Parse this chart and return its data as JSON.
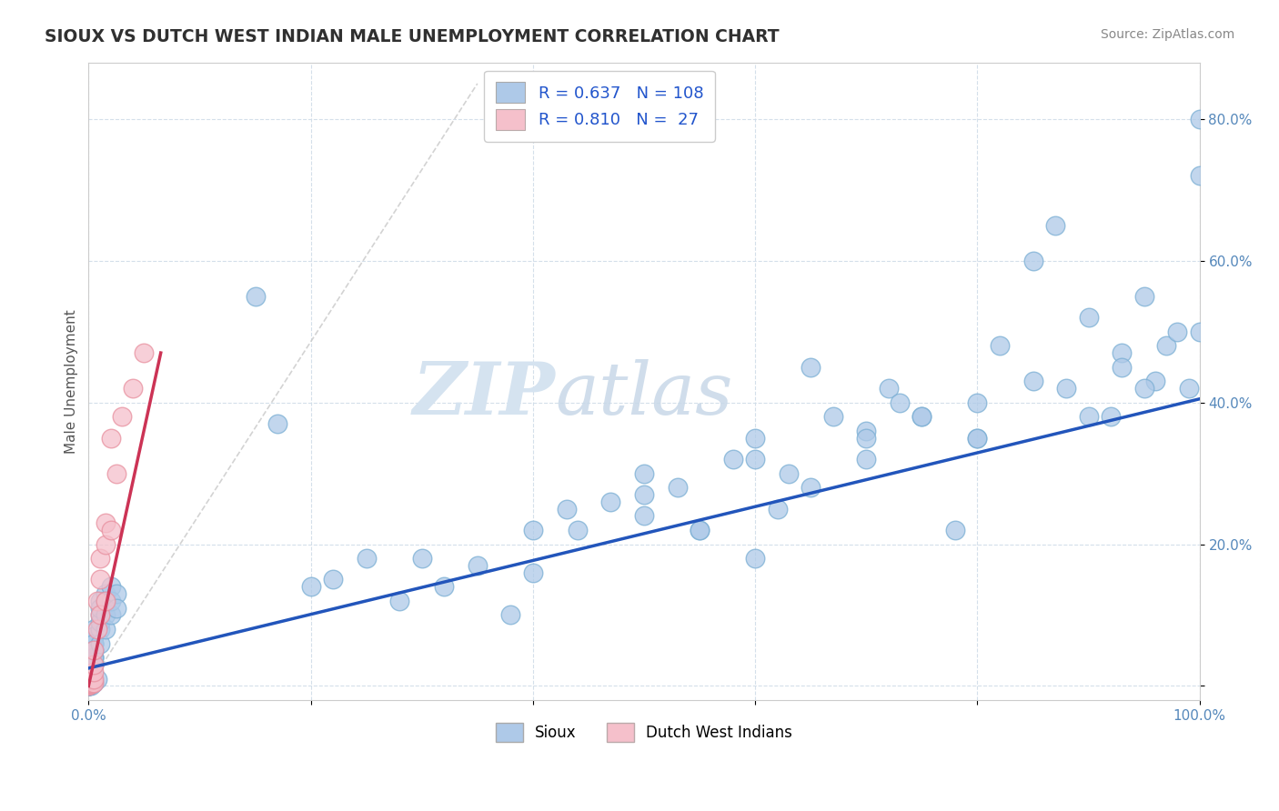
{
  "title": "SIOUX VS DUTCH WEST INDIAN MALE UNEMPLOYMENT CORRELATION CHART",
  "source_text": "Source: ZipAtlas.com",
  "ylabel": "Male Unemployment",
  "xlim": [
    0,
    1.0
  ],
  "ylim": [
    -0.02,
    0.88
  ],
  "xticks": [
    0.0,
    0.2,
    0.4,
    0.6,
    0.8,
    1.0
  ],
  "yticks": [
    0.0,
    0.2,
    0.4,
    0.6,
    0.8
  ],
  "xticklabels": [
    "0.0%",
    "",
    "",
    "",
    "",
    "100.0%"
  ],
  "yticklabels": [
    "",
    "20.0%",
    "40.0%",
    "60.0%",
    "80.0%"
  ],
  "sioux_color": "#aec9e8",
  "sioux_edge": "#7bafd4",
  "dutch_color": "#f5c0cb",
  "dutch_edge": "#e8909f",
  "blue_line_color": "#2255bb",
  "pink_line_color": "#cc3355",
  "diag_line_color": "#c8c8c8",
  "watermark_color": "#d5e3f0",
  "background_color": "#ffffff",
  "grid_color": "#d0dce8",
  "title_color": "#303030",
  "source_color": "#888888",
  "tick_color": "#5588bb",
  "sioux_x": [
    0.005,
    0.008,
    0.0,
    0.0,
    0.0,
    0.0,
    0.003,
    0.002,
    0.0,
    0.004,
    0.0,
    0.0,
    0.0,
    0.0,
    0.0,
    0.003,
    0.0,
    0.002,
    0.0,
    0.0,
    0.005,
    0.005,
    0.005,
    0.005,
    0.005,
    0.005,
    0.005,
    0.005,
    0.005,
    0.005,
    0.005,
    0.005,
    0.005,
    0.005,
    0.005,
    0.01,
    0.01,
    0.01,
    0.01,
    0.01,
    0.01,
    0.015,
    0.015,
    0.015,
    0.015,
    0.02,
    0.02,
    0.02,
    0.025,
    0.025,
    0.15,
    0.17,
    0.2,
    0.22,
    0.25,
    0.28,
    0.32,
    0.35,
    0.38,
    0.4,
    0.43,
    0.44,
    0.47,
    0.5,
    0.5,
    0.53,
    0.55,
    0.58,
    0.6,
    0.62,
    0.63,
    0.65,
    0.67,
    0.7,
    0.72,
    0.73,
    0.75,
    0.78,
    0.8,
    0.82,
    0.85,
    0.87,
    0.88,
    0.9,
    0.92,
    0.93,
    0.95,
    0.96,
    0.97,
    0.98,
    0.99,
    1.0,
    0.3,
    0.4,
    0.5,
    0.6,
    0.7,
    0.8,
    0.55,
    0.6,
    0.65,
    0.7,
    0.75,
    0.8,
    0.85,
    0.9,
    0.95,
    1.0,
    1.0,
    0.93
  ],
  "sioux_y": [
    0.005,
    0.01,
    0.0,
    0.0,
    0.0,
    0.0,
    0.01,
    0.008,
    0.0,
    0.005,
    0.0,
    0.0,
    0.0,
    0.0,
    0.003,
    0.007,
    0.0,
    0.0,
    0.0,
    0.0,
    0.04,
    0.06,
    0.03,
    0.05,
    0.07,
    0.08,
    0.06,
    0.05,
    0.07,
    0.04,
    0.05,
    0.06,
    0.03,
    0.04,
    0.05,
    0.1,
    0.08,
    0.12,
    0.06,
    0.09,
    0.11,
    0.1,
    0.13,
    0.08,
    0.12,
    0.14,
    0.1,
    0.12,
    0.13,
    0.11,
    0.55,
    0.37,
    0.14,
    0.15,
    0.18,
    0.12,
    0.14,
    0.17,
    0.1,
    0.16,
    0.25,
    0.22,
    0.26,
    0.24,
    0.3,
    0.28,
    0.22,
    0.32,
    0.35,
    0.25,
    0.3,
    0.45,
    0.38,
    0.36,
    0.42,
    0.4,
    0.38,
    0.22,
    0.35,
    0.48,
    0.6,
    0.65,
    0.42,
    0.52,
    0.38,
    0.47,
    0.55,
    0.43,
    0.48,
    0.5,
    0.42,
    0.5,
    0.18,
    0.22,
    0.27,
    0.32,
    0.35,
    0.4,
    0.22,
    0.18,
    0.28,
    0.32,
    0.38,
    0.35,
    0.43,
    0.38,
    0.42,
    0.8,
    0.72,
    0.45
  ],
  "dutch_x": [
    0.0,
    0.0,
    0.0,
    0.0,
    0.003,
    0.003,
    0.003,
    0.003,
    0.005,
    0.005,
    0.005,
    0.005,
    0.005,
    0.008,
    0.008,
    0.01,
    0.01,
    0.01,
    0.015,
    0.015,
    0.015,
    0.02,
    0.02,
    0.025,
    0.03,
    0.04,
    0.05
  ],
  "dutch_y": [
    0.0,
    0.002,
    0.003,
    0.005,
    0.003,
    0.005,
    0.008,
    0.01,
    0.005,
    0.01,
    0.02,
    0.03,
    0.05,
    0.08,
    0.12,
    0.1,
    0.15,
    0.18,
    0.12,
    0.2,
    0.23,
    0.22,
    0.35,
    0.3,
    0.38,
    0.42,
    0.47
  ],
  "blue_line_x": [
    0.0,
    1.0
  ],
  "blue_line_y": [
    0.025,
    0.405
  ],
  "pink_line_x": [
    0.0,
    0.065
  ],
  "pink_line_y": [
    0.0,
    0.47
  ]
}
